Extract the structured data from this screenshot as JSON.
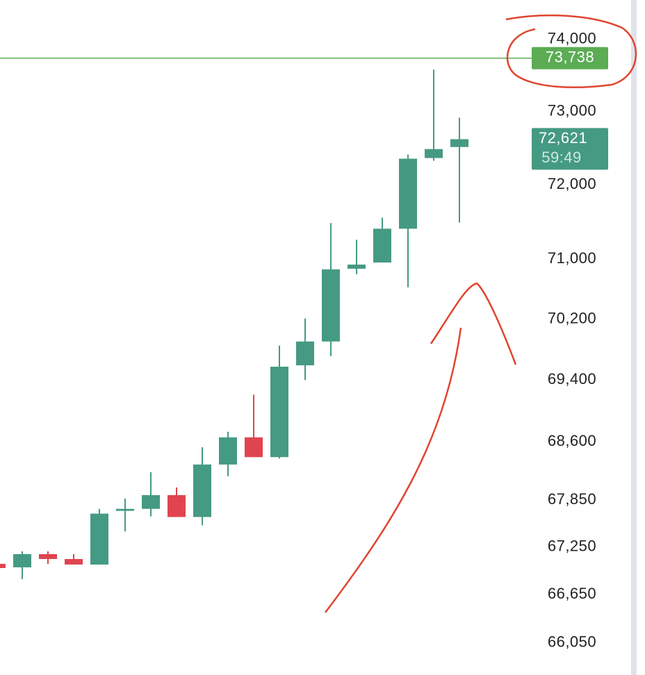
{
  "chart_data": {
    "type": "candlestick",
    "open": [
      67039,
      66995,
      67162,
      67100,
      67030,
      67711,
      67737,
      67912,
      67633,
      68305,
      68655,
      68400,
      69593,
      69906,
      70871,
      70954,
      71407,
      72364,
      72514
    ],
    "high": [
      67039,
      67197,
      67197,
      67162,
      67737,
      67868,
      68207,
      68010,
      68528,
      68727,
      69209,
      69851,
      70209,
      71482,
      71259,
      71555,
      72411,
      73578,
      72916
    ],
    "low": [
      66986,
      66845,
      67039,
      67030,
      67030,
      67450,
      67641,
      67633,
      67528,
      68154,
      68400,
      68382,
      69400,
      69713,
      70798,
      70954,
      70623,
      72327,
      71490
    ],
    "close": [
      66986,
      67162,
      67100,
      67030,
      67676,
      67737,
      67912,
      67633,
      68305,
      68655,
      68400,
      69575,
      69906,
      70862,
      70926,
      71407,
      72355,
      72486,
      72621
    ],
    "up_color": "#459a83",
    "down_color": "#e0444f",
    "log_scale": true,
    "grid": false,
    "ylim": [
      65650,
      74550
    ],
    "yticks": [
      {
        "value": 74000,
        "label": "74,000"
      },
      {
        "value": 73000,
        "label": "73,000"
      },
      {
        "value": 72000,
        "label": "72,000"
      },
      {
        "value": 71000,
        "label": "71,000"
      },
      {
        "value": 70200,
        "label": "70,200"
      },
      {
        "value": 69400,
        "label": "69,400"
      },
      {
        "value": 68600,
        "label": "68,600"
      },
      {
        "value": 67850,
        "label": "67,850"
      },
      {
        "value": 67250,
        "label": "67,250"
      },
      {
        "value": 66650,
        "label": "66,650"
      },
      {
        "value": 66050,
        "label": "66,050"
      }
    ],
    "high_line": {
      "value": 73738,
      "label": "73,738",
      "color": "#5cac54"
    },
    "current_price": {
      "value": 72621,
      "label": "72,621",
      "countdown": "59:49",
      "color": "#459a83"
    }
  }
}
